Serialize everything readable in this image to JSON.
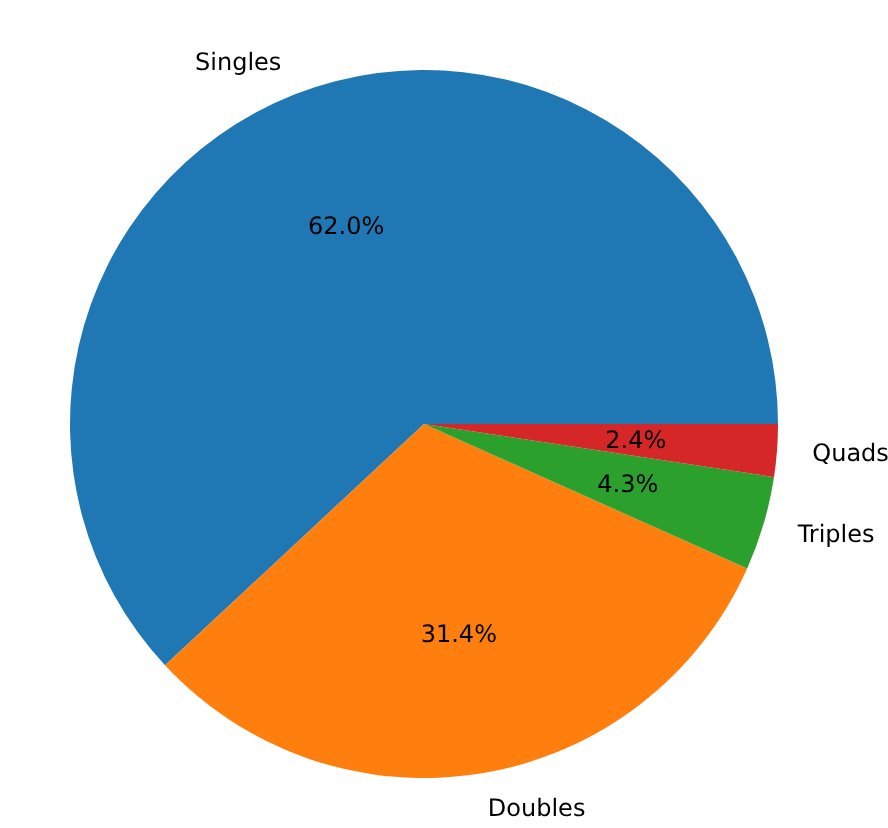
{
  "chart_data": {
    "type": "pie",
    "categories": [
      "Singles",
      "Doubles",
      "Triples",
      "Quads"
    ],
    "values": [
      62.0,
      31.4,
      4.3,
      2.4
    ],
    "value_labels": [
      "62.0%",
      "31.4%",
      "4.3%",
      "2.4%"
    ],
    "colors": [
      "#1f77b4",
      "#ff7f0e",
      "#2ca02c",
      "#d62728"
    ]
  }
}
